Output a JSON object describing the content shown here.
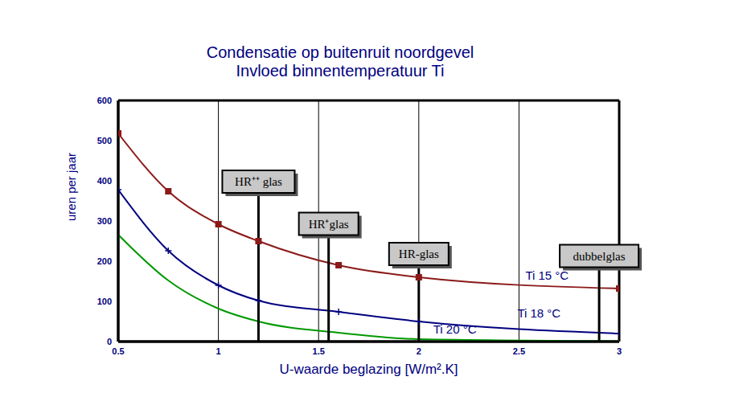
{
  "chart_data": {
    "type": "line",
    "title": "Condensatie op buitenruit noordgevel",
    "subtitle": "Invloed binnentemperatuur Ti",
    "x_label": "U-waarde beglazing [W/m².K]",
    "y_label": "uren per jaar",
    "xlim": [
      0.5,
      3
    ],
    "xticks": [
      0.5,
      1,
      1.5,
      2,
      2.5,
      3
    ],
    "ylim": [
      0,
      600
    ],
    "yticks": [
      0,
      100,
      200,
      300,
      400,
      500,
      600
    ],
    "grid": "x",
    "x": [
      0.5,
      0.75,
      1.0,
      1.2,
      1.6,
      2.0,
      3.0
    ],
    "series": [
      {
        "name": "Ti 15 °C",
        "color": "#8b1a1a",
        "marker": "square",
        "values": [
          518,
          374,
          292,
          250,
          190,
          160,
          132
        ],
        "label_at": [
          2.64,
          164
        ]
      },
      {
        "name": "Ti 18 °C",
        "color": "#000080",
        "marker": "plus",
        "values": [
          378,
          226,
          140,
          102,
          74,
          50,
          20
        ],
        "label_at": [
          2.6,
          70
        ]
      },
      {
        "name": "Ti 20 °C",
        "color": "#009900",
        "marker": "none",
        "values": [
          266,
          152,
          82,
          50,
          22,
          6,
          1
        ],
        "label_at": [
          2.18,
          30
        ]
      }
    ],
    "annotations": [
      {
        "text": "HR⁺⁺ glas",
        "x": 1.2,
        "y": 370
      },
      {
        "text": "HR⁺glas",
        "x": 1.55,
        "y": 265
      },
      {
        "text": "HR-glas",
        "x": 2.0,
        "y": 190
      },
      {
        "text": "dubbelglas",
        "x": 2.9,
        "y": 185
      }
    ]
  }
}
